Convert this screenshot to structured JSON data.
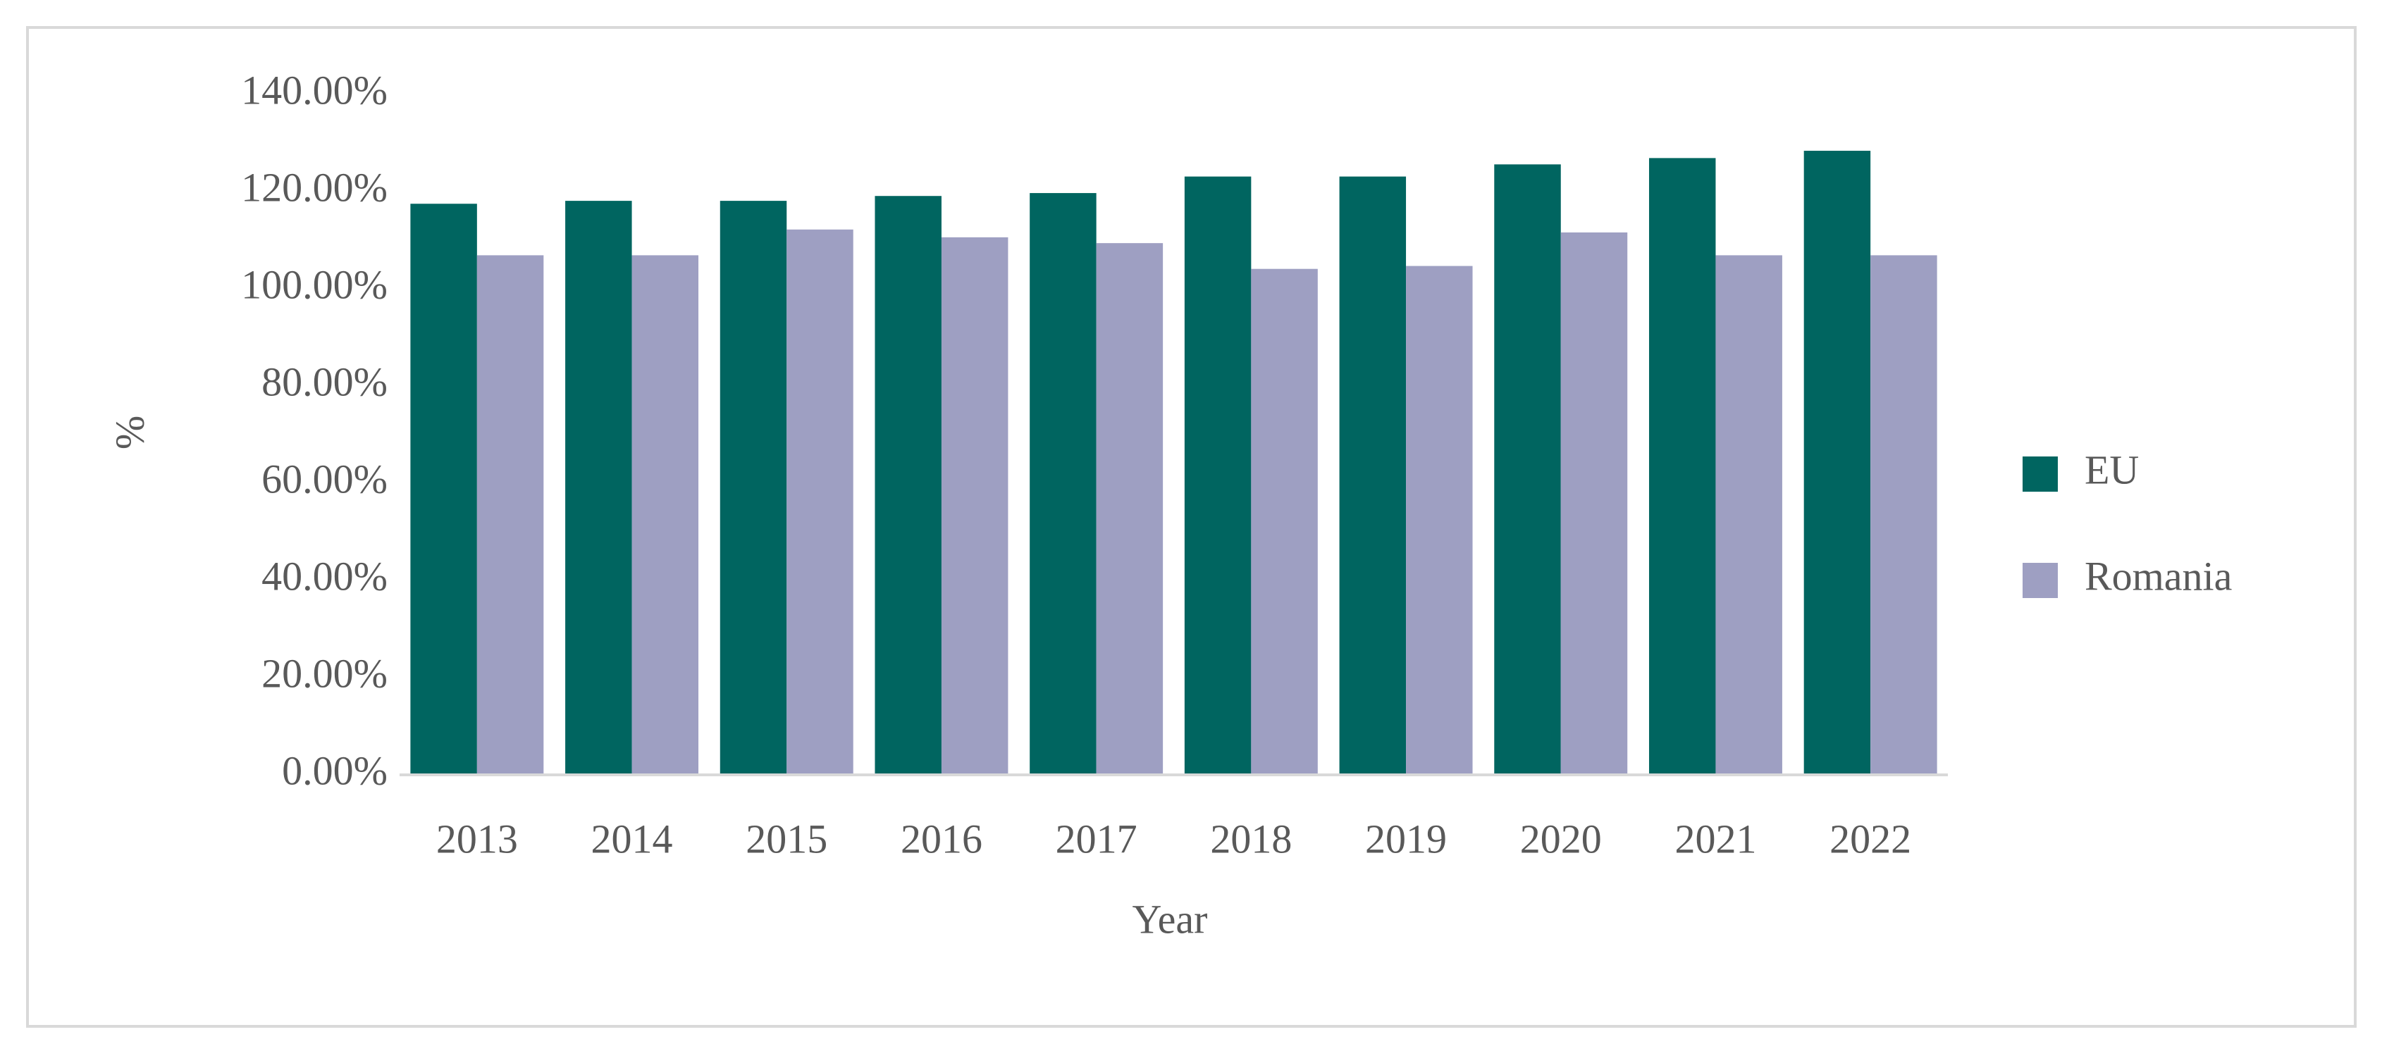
{
  "chart_data": {
    "type": "bar",
    "x_label": "Year",
    "y_label": "%",
    "categories": [
      "2013",
      "2014",
      "2015",
      "2016",
      "2017",
      "2018",
      "2019",
      "2020",
      "2021",
      "2022"
    ],
    "series": [
      {
        "name": "EU",
        "color": "#006560",
        "values": [
          117.5,
          118.1,
          118.1,
          119.1,
          119.7,
          123.1,
          123.1,
          125.6,
          126.9,
          128.4
        ]
      },
      {
        "name": "Romania",
        "color": "#9e9fc2",
        "values": [
          106.9,
          106.9,
          112.2,
          110.6,
          109.4,
          104.1,
          104.7,
          111.6,
          106.9,
          106.9
        ]
      }
    ],
    "ylim": [
      0,
      140
    ],
    "yticks": [
      {
        "value": 0,
        "label": "0.00%"
      },
      {
        "value": 20,
        "label": "20.00%"
      },
      {
        "value": 40,
        "label": "40.00%"
      },
      {
        "value": 60,
        "label": "60.00%"
      },
      {
        "value": 80,
        "label": "80.00%"
      },
      {
        "value": 100,
        "label": "100.00%"
      },
      {
        "value": 120,
        "label": "120.00%"
      },
      {
        "value": 140,
        "label": "140.00%"
      }
    ],
    "grid": false,
    "legend": "right"
  }
}
